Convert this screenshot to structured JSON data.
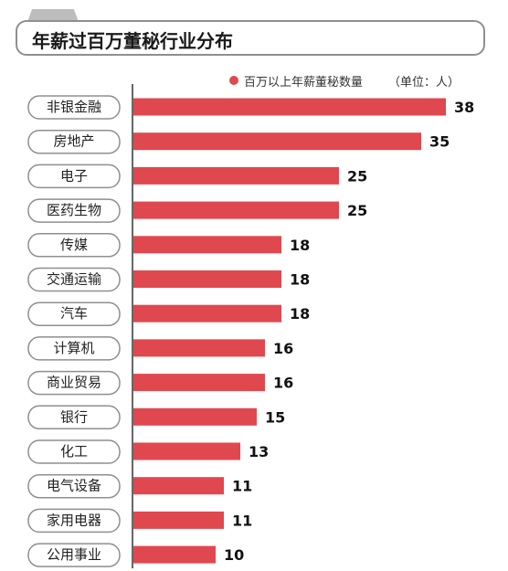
{
  "title": "年薪过百万董秘行业分布",
  "legend": {
    "label": "百万以上年薪董秘数量",
    "unit": "（单位：人）"
  },
  "colors": {
    "bar": "#e0484f",
    "axis": "#333333",
    "label_border": "#8f8f8f",
    "title_border": "#8f8f8f"
  },
  "chart_data": {
    "type": "bar",
    "orientation": "horizontal",
    "title": "年薪过百万董秘行业分布",
    "categories": [
      "非银金融",
      "房地产",
      "电子",
      "医药生物",
      "传媒",
      "交通运输",
      "汽车",
      "计算机",
      "商业贸易",
      "银行",
      "化工",
      "电气设备",
      "家用电器",
      "公用事业"
    ],
    "series": [
      {
        "name": "百万以上年薪董秘数量",
        "values": [
          38,
          35,
          25,
          25,
          18,
          18,
          18,
          16,
          16,
          15,
          13,
          11,
          11,
          10
        ]
      }
    ],
    "unit": "单位：人",
    "xlim": [
      0,
      40
    ],
    "grid": false,
    "legend_position": "top-right"
  }
}
